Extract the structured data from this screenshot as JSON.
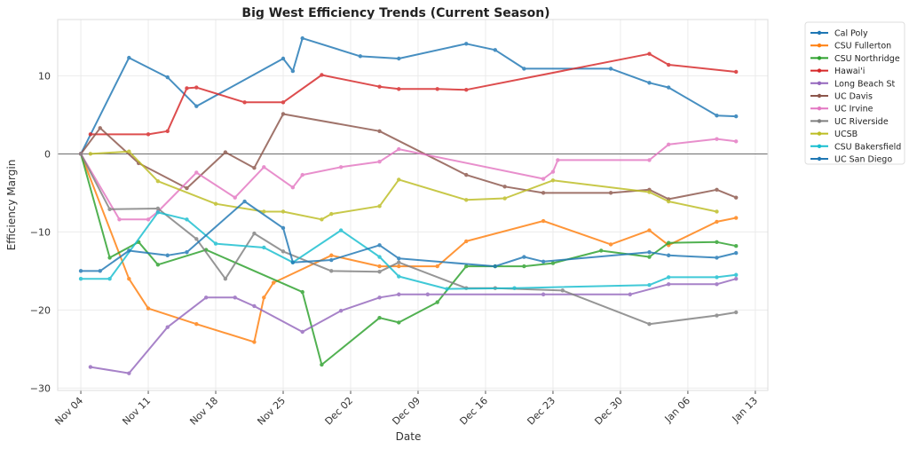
{
  "chart_data": {
    "type": "line",
    "title": "Big West Efficiency Trends (Current Season)",
    "xlabel": "Date",
    "ylabel": "Efficiency Margin",
    "x_unit": "days since Nov 04",
    "xlim": [
      -2.4,
      71.3
    ],
    "ylim": [
      -30.3,
      17.2
    ],
    "grid": true,
    "legend_position": "outside-top-right",
    "reference_line_y": 0,
    "x_ticks": [
      {
        "day": 0,
        "label": "Nov 04"
      },
      {
        "day": 7,
        "label": "Nov 11"
      },
      {
        "day": 14,
        "label": "Nov 18"
      },
      {
        "day": 21,
        "label": "Nov 25"
      },
      {
        "day": 28,
        "label": "Dec 02"
      },
      {
        "day": 35,
        "label": "Dec 09"
      },
      {
        "day": 42,
        "label": "Dec 16"
      },
      {
        "day": 49,
        "label": "Dec 23"
      },
      {
        "day": 56,
        "label": "Dec 30"
      },
      {
        "day": 63,
        "label": "Jan 06"
      },
      {
        "day": 70,
        "label": "Jan 13"
      }
    ],
    "y_ticks": [
      {
        "value": 10,
        "label": "10"
      },
      {
        "value": 0,
        "label": "0"
      },
      {
        "value": -10,
        "label": "−10"
      },
      {
        "value": -20,
        "label": "−20"
      },
      {
        "value": -30,
        "label": "−30"
      }
    ],
    "series": [
      {
        "name": "Cal Poly",
        "color": "#1f77b4",
        "x": [
          0,
          5,
          9,
          12,
          21,
          22,
          23,
          29,
          33,
          40,
          43,
          46,
          55,
          59,
          61,
          66,
          68
        ],
        "y": [
          0,
          12.3,
          9.8,
          6.1,
          12.2,
          10.6,
          14.8,
          12.5,
          12.2,
          14.1,
          13.3,
          10.9,
          10.9,
          9.1,
          8.5,
          4.9,
          4.8
        ]
      },
      {
        "name": "CSU Fullerton",
        "color": "#ff7f0e",
        "x": [
          0,
          5,
          7,
          12,
          18,
          19,
          20,
          26,
          31,
          33,
          37,
          40,
          48,
          55,
          59,
          61,
          66,
          68
        ],
        "y": [
          0,
          -16,
          -19.8,
          -21.8,
          -24.1,
          -18.4,
          -16.5,
          -13,
          -14.4,
          -14.4,
          -14.4,
          -11.2,
          -8.6,
          -11.6,
          -9.8,
          -11.7,
          -8.7,
          -8.2
        ]
      },
      {
        "name": "CSU Northridge",
        "color": "#2ca02c",
        "x": [
          0,
          3,
          6,
          8,
          13,
          23,
          25,
          31,
          33,
          37,
          40,
          43,
          46,
          49,
          54,
          59,
          61,
          66,
          68
        ],
        "y": [
          0,
          -13.3,
          -11.3,
          -14.2,
          -12.3,
          -17.7,
          -27,
          -21,
          -21.6,
          -19,
          -14.4,
          -14.4,
          -14.4,
          -14,
          -12.4,
          -13.2,
          -11.4,
          -11.3,
          -11.8
        ]
      },
      {
        "name": "Hawai'i",
        "color": "#d62728",
        "x": [
          1,
          7,
          9,
          11,
          12,
          17,
          21,
          25,
          31,
          33,
          37,
          40,
          59,
          61,
          68
        ],
        "y": [
          2.5,
          2.5,
          2.9,
          8.4,
          8.5,
          6.6,
          6.6,
          10.1,
          8.6,
          8.3,
          8.3,
          8.2,
          12.8,
          11.4,
          10.5
        ]
      },
      {
        "name": "Long Beach St",
        "color": "#9467bd",
        "x": [
          1,
          5,
          9,
          13,
          16,
          18,
          23,
          27,
          31,
          33,
          36,
          48,
          57,
          61,
          66,
          68
        ],
        "y": [
          -27.3,
          -28.1,
          -22.2,
          -18.4,
          -18.4,
          -19.5,
          -22.8,
          -20.1,
          -18.4,
          -18,
          -18,
          -18,
          -18,
          -16.7,
          -16.7,
          -16
        ]
      },
      {
        "name": "UC Davis",
        "color": "#8c564b",
        "x": [
          0,
          2,
          6,
          11,
          15,
          18,
          21,
          31,
          40,
          44,
          48,
          55,
          59,
          61,
          66,
          68
        ],
        "y": [
          0,
          3.3,
          -1.2,
          -4.4,
          0.2,
          -1.8,
          5.1,
          2.9,
          -2.7,
          -4.2,
          -5,
          -5,
          -4.6,
          -5.8,
          -4.6,
          -5.6
        ]
      },
      {
        "name": "UC Irvine",
        "color": "#e377c2",
        "x": [
          0,
          4,
          7,
          8,
          12,
          16,
          19,
          22,
          23,
          27,
          31,
          33,
          48,
          49,
          49.5,
          59,
          61,
          66,
          68
        ],
        "y": [
          0,
          -8.4,
          -8.4,
          -7.4,
          -2.4,
          -5.6,
          -1.7,
          -4.3,
          -2.7,
          -1.7,
          -1,
          0.6,
          -3.2,
          -2.3,
          -0.8,
          -0.8,
          1.2,
          1.9,
          1.6
        ]
      },
      {
        "name": "UC Riverside",
        "color": "#7f7f7f",
        "x": [
          0,
          3,
          8,
          12,
          15,
          18,
          21,
          26,
          31,
          33,
          40,
          43,
          50,
          59,
          66,
          68
        ],
        "y": [
          0,
          -7.1,
          -7,
          -10.9,
          -16,
          -10.2,
          -12.5,
          -15,
          -15.1,
          -13.9,
          -17.2,
          -17.2,
          -17.5,
          -21.8,
          -20.7,
          -20.3
        ]
      },
      {
        "name": "UCSB",
        "color": "#bcbd22",
        "x": [
          1,
          5,
          8,
          14,
          19,
          21,
          25,
          26,
          31,
          33,
          40,
          44,
          49,
          59,
          61,
          66
        ],
        "y": [
          0,
          0.3,
          -3.5,
          -6.4,
          -7.4,
          -7.4,
          -8.4,
          -7.7,
          -6.7,
          -3.3,
          -5.9,
          -5.7,
          -3.4,
          -4.9,
          -6.1,
          -7.4
        ]
      },
      {
        "name": "CSU Bakersfield",
        "color": "#17becf",
        "x": [
          0,
          3,
          8,
          11,
          14,
          19,
          22,
          27,
          31,
          33,
          38,
          45,
          59,
          61,
          66,
          68
        ],
        "y": [
          -16,
          -16,
          -7.5,
          -8.4,
          -11.5,
          -12,
          -13.9,
          -9.8,
          -13.2,
          -15.7,
          -17.3,
          -17.2,
          -16.8,
          -15.8,
          -15.8,
          -15.5
        ]
      },
      {
        "name": "UC San Diego",
        "color": "#1f77b4",
        "x": [
          0,
          2,
          5,
          9,
          11,
          17,
          21,
          22,
          26,
          31,
          33,
          43,
          46,
          48,
          59,
          61,
          66,
          68
        ],
        "y": [
          -15,
          -15,
          -12.4,
          -13,
          -12.6,
          -6.1,
          -9.5,
          -13.9,
          -13.6,
          -11.7,
          -13.4,
          -14.4,
          -13.2,
          -13.8,
          -12.6,
          -13,
          -13.3,
          -12.7
        ]
      }
    ]
  }
}
